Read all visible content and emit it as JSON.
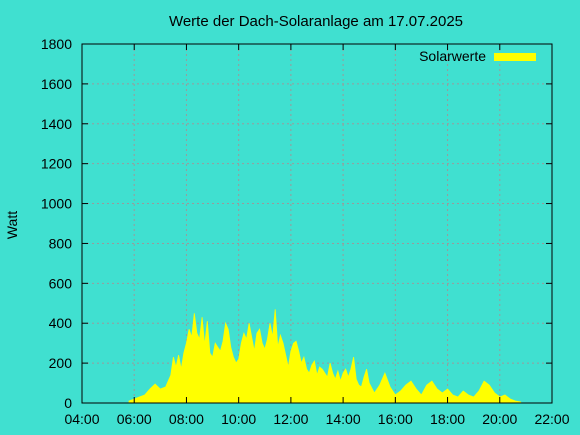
{
  "chart_data": {
    "type": "area",
    "title": "Werte der Dach-Solaranlage am 17.07.2025",
    "xlabel": "",
    "ylabel": "Watt",
    "x_unit": "hours of day",
    "xlim": [
      4,
      22
    ],
    "ylim": [
      0,
      1800
    ],
    "x_ticks": [
      "04:00",
      "06:00",
      "08:00",
      "10:00",
      "12:00",
      "14:00",
      "16:00",
      "18:00",
      "20:00",
      "22:00"
    ],
    "y_ticks": [
      "0",
      "200",
      "400",
      "600",
      "800",
      "1000",
      "1200",
      "1400",
      "1600",
      "1800"
    ],
    "grid": true,
    "legend_position": "top-right",
    "fill_color": "#ffff00",
    "background_color": "#40e0d0",
    "series": [
      {
        "name": "Solarwerte",
        "x": [
          5.8,
          6.0,
          6.2,
          6.4,
          6.6,
          6.8,
          7.0,
          7.2,
          7.4,
          7.5,
          7.6,
          7.7,
          7.8,
          7.9,
          8.0,
          8.1,
          8.2,
          8.3,
          8.4,
          8.5,
          8.6,
          8.7,
          8.8,
          8.9,
          9.0,
          9.1,
          9.2,
          9.3,
          9.4,
          9.5,
          9.6,
          9.7,
          9.8,
          9.9,
          10.0,
          10.1,
          10.2,
          10.3,
          10.4,
          10.5,
          10.6,
          10.7,
          10.8,
          10.9,
          11.0,
          11.1,
          11.2,
          11.3,
          11.4,
          11.5,
          11.6,
          11.7,
          11.8,
          11.9,
          12.0,
          12.1,
          12.2,
          12.3,
          12.4,
          12.5,
          12.6,
          12.7,
          12.8,
          12.9,
          13.0,
          13.1,
          13.2,
          13.3,
          13.4,
          13.5,
          13.6,
          13.7,
          13.8,
          13.9,
          14.0,
          14.1,
          14.2,
          14.3,
          14.4,
          14.5,
          14.6,
          14.7,
          14.8,
          14.9,
          15.0,
          15.2,
          15.4,
          15.6,
          15.8,
          16.0,
          16.2,
          16.4,
          16.6,
          16.8,
          17.0,
          17.2,
          17.4,
          17.6,
          17.8,
          18.0,
          18.2,
          18.4,
          18.6,
          18.8,
          19.0,
          19.2,
          19.4,
          19.6,
          19.8,
          20.0,
          20.2,
          20.4,
          20.6,
          20.8
        ],
        "values": [
          10,
          20,
          30,
          40,
          70,
          95,
          70,
          80,
          140,
          230,
          180,
          240,
          170,
          250,
          300,
          370,
          330,
          450,
          350,
          320,
          430,
          290,
          410,
          250,
          230,
          300,
          280,
          260,
          310,
          400,
          370,
          280,
          230,
          200,
          220,
          300,
          350,
          320,
          400,
          330,
          260,
          350,
          370,
          300,
          270,
          320,
          400,
          330,
          470,
          280,
          340,
          300,
          240,
          180,
          260,
          300,
          310,
          260,
          200,
          230,
          170,
          150,
          190,
          210,
          140,
          180,
          170,
          150,
          130,
          200,
          150,
          120,
          160,
          110,
          150,
          170,
          130,
          170,
          230,
          120,
          90,
          80,
          130,
          170,
          100,
          50,
          90,
          150,
          80,
          40,
          60,
          90,
          110,
          70,
          40,
          90,
          110,
          70,
          50,
          70,
          40,
          30,
          60,
          40,
          30,
          60,
          110,
          90,
          50,
          30,
          40,
          20,
          10,
          5
        ]
      }
    ]
  }
}
